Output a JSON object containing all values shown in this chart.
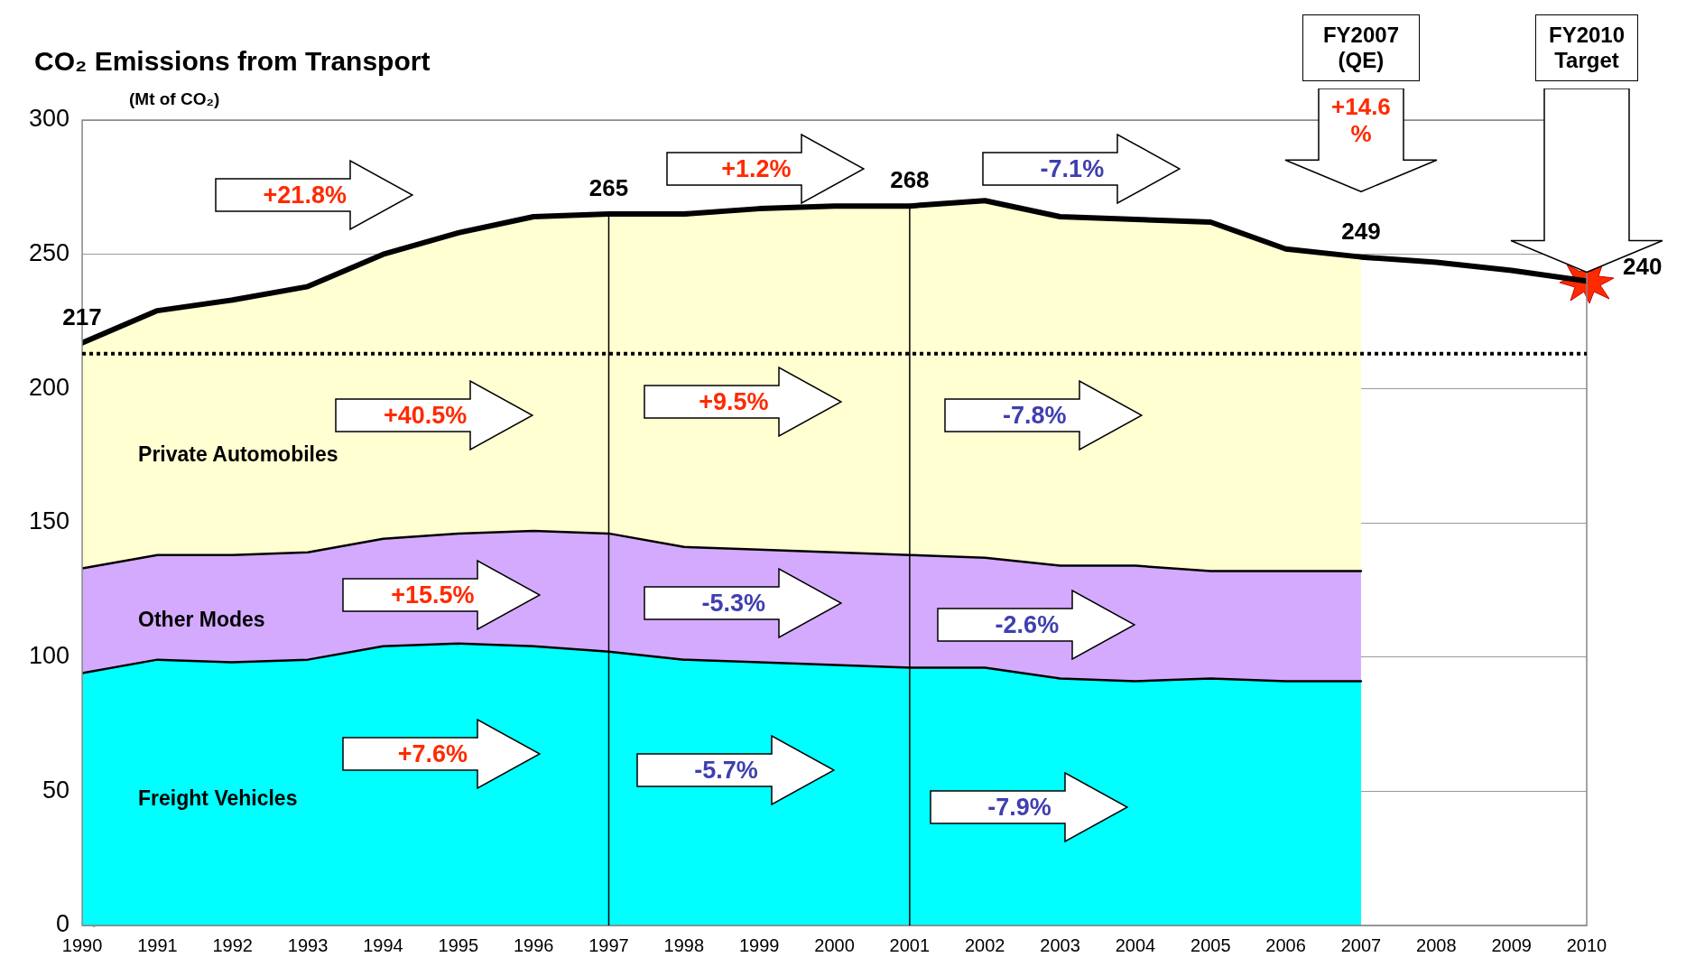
{
  "chart_data": {
    "type": "area",
    "title": "CO₂ Emissions from Transport",
    "ylabel": "(Mt of CO₂)",
    "xlim": [
      1990,
      2010
    ],
    "xticks": [
      1990,
      1991,
      1992,
      1993,
      1994,
      1995,
      1996,
      1997,
      1998,
      1999,
      2000,
      2001,
      2002,
      2003,
      2004,
      2005,
      2006,
      2007,
      2008,
      2009,
      2010
    ],
    "ylim": [
      0,
      300
    ],
    "yticks": [
      0,
      50,
      100,
      150,
      200,
      250,
      300
    ],
    "grid": "y",
    "stacked": true,
    "x": [
      1990,
      1991,
      1992,
      1993,
      1994,
      1995,
      1996,
      1997,
      1998,
      1999,
      2000,
      2001,
      2002,
      2003,
      2004,
      2005,
      2006,
      2007
    ],
    "series": [
      {
        "name": "Freight Vehicles",
        "color": "#00ffff",
        "values": [
          94,
          99,
          98,
          99,
          104,
          105,
          104,
          102,
          99,
          98,
          97,
          96,
          96,
          92,
          91,
          92,
          91,
          91
        ]
      },
      {
        "name": "Other Modes",
        "color": "#d4aaff",
        "values": [
          39,
          39,
          40,
          40,
          40,
          41,
          43,
          44,
          42,
          42,
          42,
          42,
          41,
          42,
          43,
          40,
          41,
          41
        ]
      },
      {
        "name": "Private Automobiles",
        "color": "#ffffd2",
        "values": [
          84,
          91,
          95,
          99,
          106,
          112,
          117,
          119,
          124,
          127,
          129,
          130,
          133,
          130,
          129,
          130,
          120,
          117
        ]
      },
      {
        "type": "line",
        "color": "#000000",
        "x": [
          1990,
          1991,
          1992,
          1993,
          1994,
          1995,
          1996,
          1997,
          1998,
          1999,
          2000,
          2001,
          2002,
          2003,
          2004,
          2005,
          2006,
          2007,
          2008,
          2009,
          2010
        ],
        "values": [
          217,
          229,
          233,
          238,
          250,
          258,
          264,
          265,
          265,
          267,
          268,
          268,
          270,
          264,
          263,
          262,
          252,
          249,
          247,
          244,
          240
        ],
        "value_labels": [
          "217",
          null,
          null,
          null,
          null,
          null,
          null,
          "265",
          null,
          null,
          null,
          "268",
          null,
          null,
          null,
          null,
          null,
          "249",
          null,
          null,
          "240"
        ]
      }
    ],
    "ref_lines": [
      {
        "axis": "y",
        "value": 213,
        "line_style": "dotted",
        "color": "#000000"
      },
      {
        "axis": "x",
        "value": 1997,
        "color": "#000000"
      },
      {
        "axis": "x",
        "value": 2001,
        "color": "#000000"
      }
    ],
    "annotations": [
      "+21.8%",
      "+1.2%",
      "-7.1%",
      "+40.5%",
      "+9.5%",
      "-7.8%",
      "+15.5%",
      "-5.3%",
      "-2.6%",
      "+7.6%",
      "-5.7%",
      "-7.9%",
      "FY2007 (QE)",
      "+14.6 %",
      "FY2010 Target"
    ]
  }
}
